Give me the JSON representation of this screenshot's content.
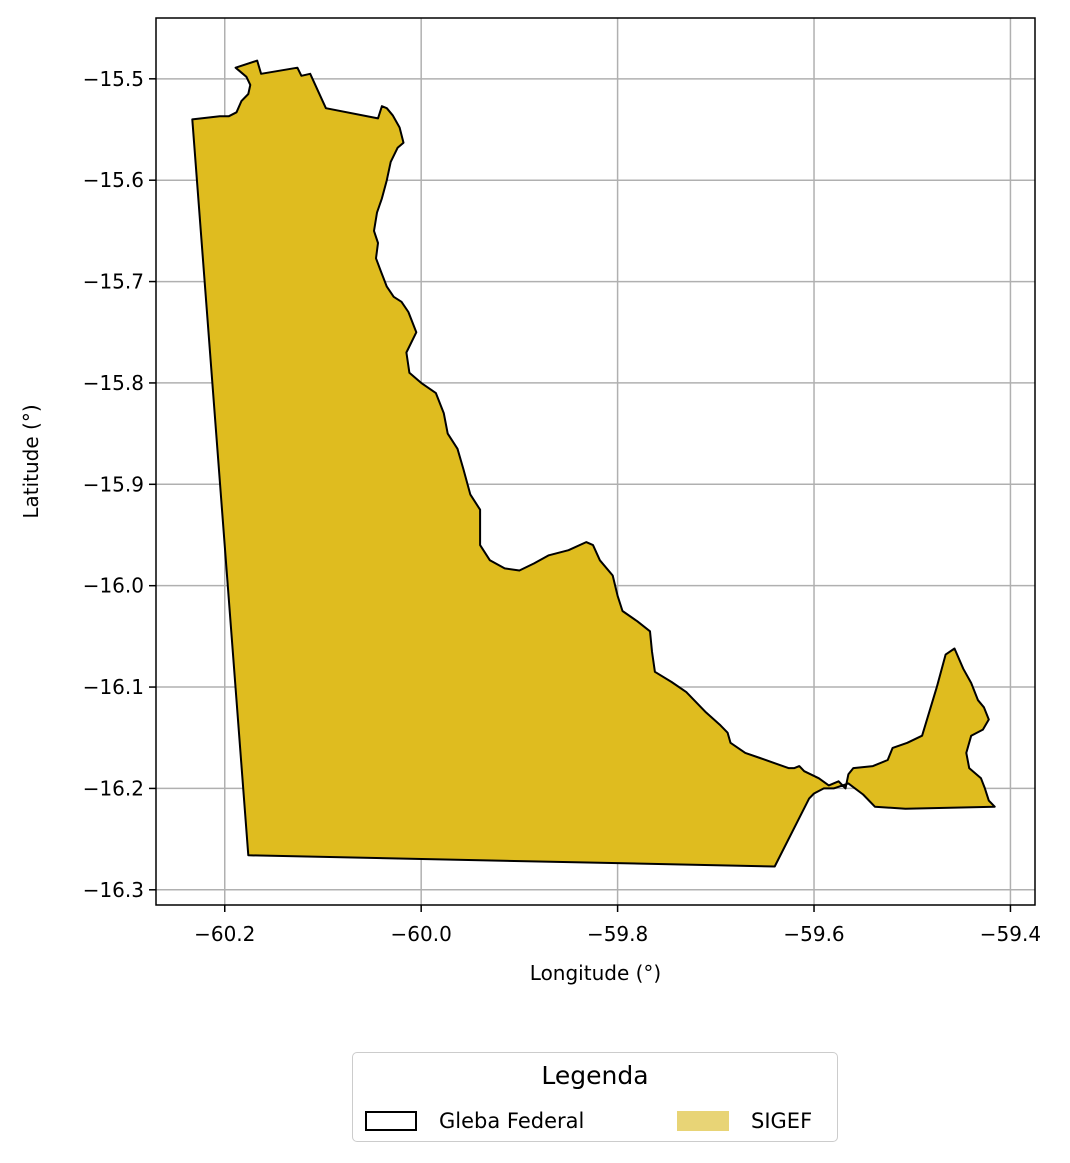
{
  "chart_data": {
    "type": "map",
    "title": "",
    "xlabel": "Longitude (°)",
    "ylabel": "Latitude (°)",
    "xlim": [
      -60.27,
      -59.375
    ],
    "ylim": [
      -16.315,
      -15.44
    ],
    "xticks": [
      -60.2,
      -60.0,
      -59.8,
      -59.6,
      -59.4
    ],
    "xtick_labels": [
      "−60.2",
      "−60.0",
      "−59.8",
      "−59.6",
      "−59.4"
    ],
    "yticks": [
      -15.5,
      -15.6,
      -15.7,
      -15.8,
      -15.9,
      -16.0,
      -16.1,
      -16.2,
      -16.3
    ],
    "ytick_labels": [
      "−15.5",
      "−15.6",
      "−15.7",
      "−15.8",
      "−15.9",
      "−16.0",
      "−16.1",
      "−16.2",
      "−16.3"
    ],
    "grid": true,
    "fill_color": "#dfbc1f",
    "edge_color": "#000000",
    "polygon": [
      [
        -60.233,
        -15.54
      ],
      [
        -60.205,
        -15.537
      ],
      [
        -60.196,
        -15.537
      ],
      [
        -60.188,
        -15.533
      ],
      [
        -60.183,
        -15.522
      ],
      [
        -60.176,
        -15.515
      ],
      [
        -60.174,
        -15.506
      ],
      [
        -60.178,
        -15.498
      ],
      [
        -60.189,
        -15.489
      ],
      [
        -60.167,
        -15.482
      ],
      [
        -60.163,
        -15.495
      ],
      [
        -60.126,
        -15.489
      ],
      [
        -60.122,
        -15.497
      ],
      [
        -60.113,
        -15.495
      ],
      [
        -60.097,
        -15.529
      ],
      [
        -60.044,
        -15.539
      ],
      [
        -60.04,
        -15.527
      ],
      [
        -60.035,
        -15.529
      ],
      [
        -60.029,
        -15.536
      ],
      [
        -60.022,
        -15.548
      ],
      [
        -60.018,
        -15.563
      ],
      [
        -60.024,
        -15.568
      ],
      [
        -60.031,
        -15.582
      ],
      [
        -60.035,
        -15.6
      ],
      [
        -60.04,
        -15.618
      ],
      [
        -60.045,
        -15.632
      ],
      [
        -60.048,
        -15.65
      ],
      [
        -60.044,
        -15.662
      ],
      [
        -60.046,
        -15.677
      ],
      [
        -60.041,
        -15.69
      ],
      [
        -60.035,
        -15.705
      ],
      [
        -60.028,
        -15.715
      ],
      [
        -60.02,
        -15.72
      ],
      [
        -60.013,
        -15.73
      ],
      [
        -60.005,
        -15.75
      ],
      [
        -60.015,
        -15.77
      ],
      [
        -60.012,
        -15.79
      ],
      [
        -60.0,
        -15.8
      ],
      [
        -59.985,
        -15.81
      ],
      [
        -59.977,
        -15.83
      ],
      [
        -59.973,
        -15.85
      ],
      [
        -59.963,
        -15.865
      ],
      [
        -59.957,
        -15.885
      ],
      [
        -59.95,
        -15.91
      ],
      [
        -59.94,
        -15.925
      ],
      [
        -59.94,
        -15.96
      ],
      [
        -59.93,
        -15.975
      ],
      [
        -59.915,
        -15.983
      ],
      [
        -59.9,
        -15.985
      ],
      [
        -59.885,
        -15.978
      ],
      [
        -59.87,
        -15.97
      ],
      [
        -59.85,
        -15.965
      ],
      [
        -59.832,
        -15.957
      ],
      [
        -59.825,
        -15.96
      ],
      [
        -59.818,
        -15.975
      ],
      [
        -59.805,
        -15.99
      ],
      [
        -59.8,
        -16.01
      ],
      [
        -59.795,
        -16.025
      ],
      [
        -59.78,
        -16.035
      ],
      [
        -59.767,
        -16.045
      ],
      [
        -59.765,
        -16.065
      ],
      [
        -59.762,
        -16.085
      ],
      [
        -59.745,
        -16.095
      ],
      [
        -59.73,
        -16.105
      ],
      [
        -59.71,
        -16.125
      ],
      [
        -59.696,
        -16.137
      ],
      [
        -59.688,
        -16.145
      ],
      [
        -59.685,
        -16.155
      ],
      [
        -59.67,
        -16.165
      ],
      [
        -59.655,
        -16.17
      ],
      [
        -59.626,
        -16.18
      ],
      [
        -59.62,
        -16.18
      ],
      [
        -59.615,
        -16.178
      ],
      [
        -59.61,
        -16.183
      ],
      [
        -59.595,
        -16.19
      ],
      [
        -59.585,
        -16.197
      ],
      [
        -59.575,
        -16.193
      ],
      [
        -59.568,
        -16.2
      ],
      [
        -59.565,
        -16.186
      ],
      [
        -59.56,
        -16.18
      ],
      [
        -59.54,
        -16.178
      ],
      [
        -59.525,
        -16.172
      ],
      [
        -59.52,
        -16.16
      ],
      [
        -59.505,
        -16.155
      ],
      [
        -59.49,
        -16.148
      ],
      [
        -59.475,
        -16.1
      ],
      [
        -59.466,
        -16.068
      ],
      [
        -59.457,
        -16.062
      ],
      [
        -59.448,
        -16.082
      ],
      [
        -59.44,
        -16.096
      ],
      [
        -59.433,
        -16.113
      ],
      [
        -59.427,
        -16.12
      ],
      [
        -59.422,
        -16.132
      ],
      [
        -59.428,
        -16.142
      ],
      [
        -59.44,
        -16.148
      ],
      [
        -59.445,
        -16.165
      ],
      [
        -59.442,
        -16.18
      ],
      [
        -59.43,
        -16.19
      ],
      [
        -59.426,
        -16.2
      ],
      [
        -59.422,
        -16.212
      ],
      [
        -59.416,
        -16.218
      ],
      [
        -59.507,
        -16.22
      ],
      [
        -59.538,
        -16.218
      ],
      [
        -59.55,
        -16.206
      ],
      [
        -59.565,
        -16.195
      ],
      [
        -59.58,
        -16.2
      ],
      [
        -59.59,
        -16.2
      ],
      [
        -59.6,
        -16.205
      ],
      [
        -59.605,
        -16.21
      ],
      [
        -59.64,
        -16.277
      ],
      [
        -60.176,
        -16.266
      ],
      [
        -60.233,
        -15.54
      ]
    ]
  },
  "legend": {
    "title": "Legenda",
    "items": [
      {
        "label": "Gleba Federal",
        "face": "#ffffff",
        "edge": "#000000"
      },
      {
        "label": "SIGEF",
        "face": "#e8d476",
        "edge": "#e8d476"
      }
    ]
  }
}
